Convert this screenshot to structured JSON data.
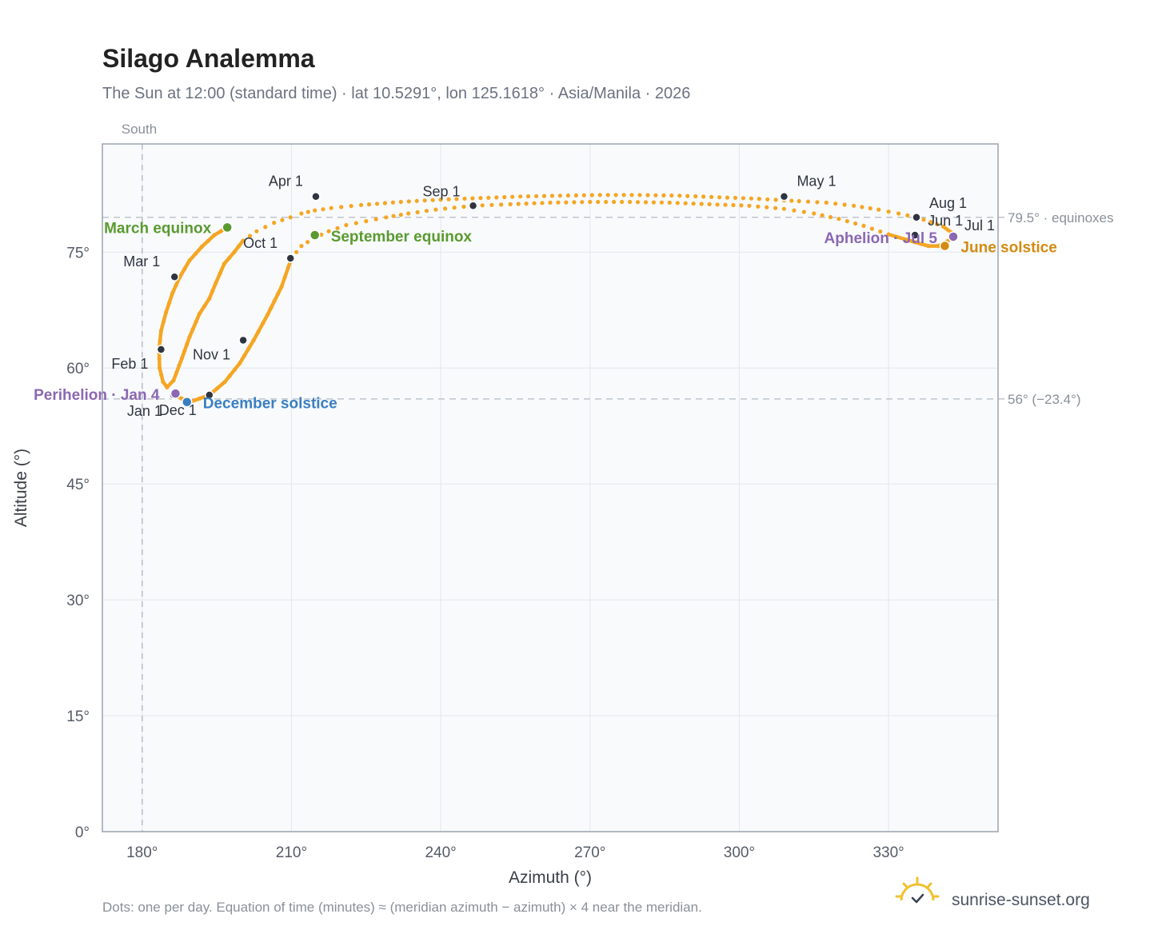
{
  "chart_data": {
    "type": "scatter",
    "title": "Silago Analemma",
    "subtitle": "The Sun at 12:00 (standard time) · lat 10.5291°, lon 125.1618° · Asia/Manila · 2026",
    "xlabel": "Azimuth (°)",
    "ylabel": "Altitude (°)",
    "xlim": [
      172,
      352
    ],
    "ylim": [
      0,
      89
    ],
    "x_ticks": [
      {
        "value": 180,
        "label": "180°"
      },
      {
        "value": 210,
        "label": "210°"
      },
      {
        "value": 240,
        "label": "240°"
      },
      {
        "value": 270,
        "label": "270°"
      },
      {
        "value": 300,
        "label": "300°"
      },
      {
        "value": 330,
        "label": "330°"
      }
    ],
    "y_ticks": [
      {
        "value": 0,
        "label": "0°"
      },
      {
        "value": 15,
        "label": "15°"
      },
      {
        "value": 30,
        "label": "30°"
      },
      {
        "value": 45,
        "label": "45°"
      },
      {
        "value": 60,
        "label": "60°"
      },
      {
        "value": 75,
        "label": "75°"
      }
    ],
    "grid": true,
    "south_line": {
      "value": 180,
      "label": "South"
    },
    "reference_lines": [
      {
        "value": 79.5,
        "label": "79.5° · equinoxes"
      },
      {
        "value": 56,
        "label": "56° (−23.4°)"
      }
    ],
    "series": [
      {
        "color": "#f5a623",
        "x": [
          186.3,
          189.6,
          193.5,
          196.6,
          199.6,
          202.4,
          205.2,
          208.0,
          210.0,
          212.0,
          214.5,
          217.5,
          221.0,
          225.0,
          229.0,
          233.5,
          239.0,
          246.5,
          254.0,
          262.0,
          270.0,
          278.0,
          286.0,
          294.0,
          302.0,
          309.0,
          315.0,
          320.0,
          325.0,
          330.0,
          335.2,
          338.0,
          340.0,
          341.5,
          343.0,
          342.5,
          341.0,
          338.5,
          335.6,
          332.0,
          328.0,
          323.0,
          317.5,
          312.0,
          309.0,
          304.0,
          296.0,
          288.0,
          280.0,
          272.0,
          264.0,
          256.0,
          248.0,
          240.0,
          232.0,
          224.0,
          218.0,
          214.7,
          212.0,
          209.8,
          206.5,
          203.0,
          200.3,
          198.5,
          196.5,
          194.8,
          193.5,
          191.5,
          189.5,
          188.0,
          186.3,
          185.0,
          184.2,
          183.5,
          183.4,
          183.8,
          184.8,
          186.1,
          187.5,
          189.5,
          192.0,
          194.5,
          197.1
        ],
        "y": [
          56.5,
          55.6,
          56.5,
          58.2,
          60.6,
          63.6,
          66.9,
          70.5,
          74.2,
          75.8,
          76.8,
          77.7,
          78.5,
          79.0,
          79.5,
          80.0,
          80.5,
          81.0,
          81.2,
          81.4,
          81.5,
          81.5,
          81.4,
          81.2,
          81.0,
          80.6,
          80.0,
          79.3,
          78.4,
          77.3,
          76.3,
          75.8,
          75.8,
          76.3,
          76.9,
          77.6,
          78.3,
          78.9,
          79.5,
          80.0,
          80.5,
          81.0,
          81.4,
          81.6,
          81.7,
          81.9,
          82.1,
          82.3,
          82.4,
          82.4,
          82.3,
          82.2,
          82.0,
          81.8,
          81.5,
          81.1,
          80.7,
          80.4,
          80.0,
          79.5,
          78.8,
          77.7,
          76.5,
          75.0,
          73.5,
          71.0,
          69.0,
          67.0,
          64.0,
          61.3,
          58.4,
          57.5,
          58.2,
          60.0,
          62.4,
          64.8,
          67.2,
          69.7,
          71.7,
          73.9,
          75.7,
          77.2,
          78.2
        ]
      }
    ],
    "month_markers": [
      {
        "label": "Jan 1",
        "x": 186.3,
        "y": 56.5,
        "anchor": "end",
        "dx": -14,
        "dy": 26
      },
      {
        "label": "Feb 1",
        "x": 183.8,
        "y": 62.4,
        "anchor": "end",
        "dx": -16,
        "dy": 24
      },
      {
        "label": "Mar 1",
        "x": 186.5,
        "y": 71.8,
        "anchor": "end",
        "dx": -18,
        "dy": -13
      },
      {
        "label": "Apr 1",
        "x": 214.9,
        "y": 82.2,
        "anchor": "end",
        "dx": -16,
        "dy": -13
      },
      {
        "label": "May 1",
        "x": 309.0,
        "y": 82.2,
        "anchor": "start",
        "dx": 16,
        "dy": -13
      },
      {
        "label": "Jun 1",
        "x": 335.3,
        "y": 77.2,
        "anchor": "start",
        "dx": 16,
        "dy": -12
      },
      {
        "label": "Jul 1",
        "x": 343.0,
        "y": 76.9,
        "anchor": "start",
        "dx": 14,
        "dy": -9
      },
      {
        "label": "Aug 1",
        "x": 335.6,
        "y": 79.5,
        "anchor": "start",
        "dx": 16,
        "dy": -12
      },
      {
        "label": "Sep 1",
        "x": 246.5,
        "y": 81.0,
        "anchor": "end",
        "dx": -16,
        "dy": -12
      },
      {
        "label": "Oct 1",
        "x": 209.8,
        "y": 74.2,
        "anchor": "end",
        "dx": -16,
        "dy": -13
      },
      {
        "label": "Nov 1",
        "x": 200.3,
        "y": 63.6,
        "anchor": "end",
        "dx": -16,
        "dy": 24
      },
      {
        "label": "Dec 1",
        "x": 193.5,
        "y": 56.5,
        "anchor": "end",
        "dx": -16,
        "dy": 25
      }
    ],
    "events": [
      {
        "label": "March equinox",
        "x": 197.1,
        "y": 78.2,
        "color": "#5a9a2f",
        "text_color": "#5a9a2f",
        "anchor": "end",
        "dx": -20,
        "dy": 7
      },
      {
        "label": "September equinox",
        "x": 214.7,
        "y": 77.2,
        "color": "#5a9a2f",
        "text_color": "#5a9a2f",
        "anchor": "start",
        "dx": 20,
        "dy": 8
      },
      {
        "label": "June solstice",
        "x": 341.3,
        "y": 75.8,
        "color": "#d38b12",
        "text_color": "#d38b12",
        "anchor": "start",
        "dx": 20,
        "dy": 8
      },
      {
        "label": "December solstice",
        "x": 189.0,
        "y": 55.6,
        "color": "#3a7ec1",
        "text_color": "#3a7ec1",
        "anchor": "start",
        "dx": 20,
        "dy": 8
      },
      {
        "label": "Perihelion · Jan 4",
        "x": 186.7,
        "y": 56.7,
        "color": "#8b67b3",
        "text_color": "#8b67b3",
        "anchor": "end",
        "dx": -20,
        "dy": 8
      },
      {
        "label": "Aphelion · Jul 5",
        "x": 343.0,
        "y": 77.0,
        "color": "#8b67b3",
        "text_color": "#8b67b3",
        "anchor": "end",
        "dx": -20,
        "dy": 8
      }
    ],
    "footnote": "Dots: one per day. Equation of time (minutes) ≈ (meridian azimuth − azimuth) × 4 near the meridian.",
    "brand": "sunrise-sunset.org"
  }
}
